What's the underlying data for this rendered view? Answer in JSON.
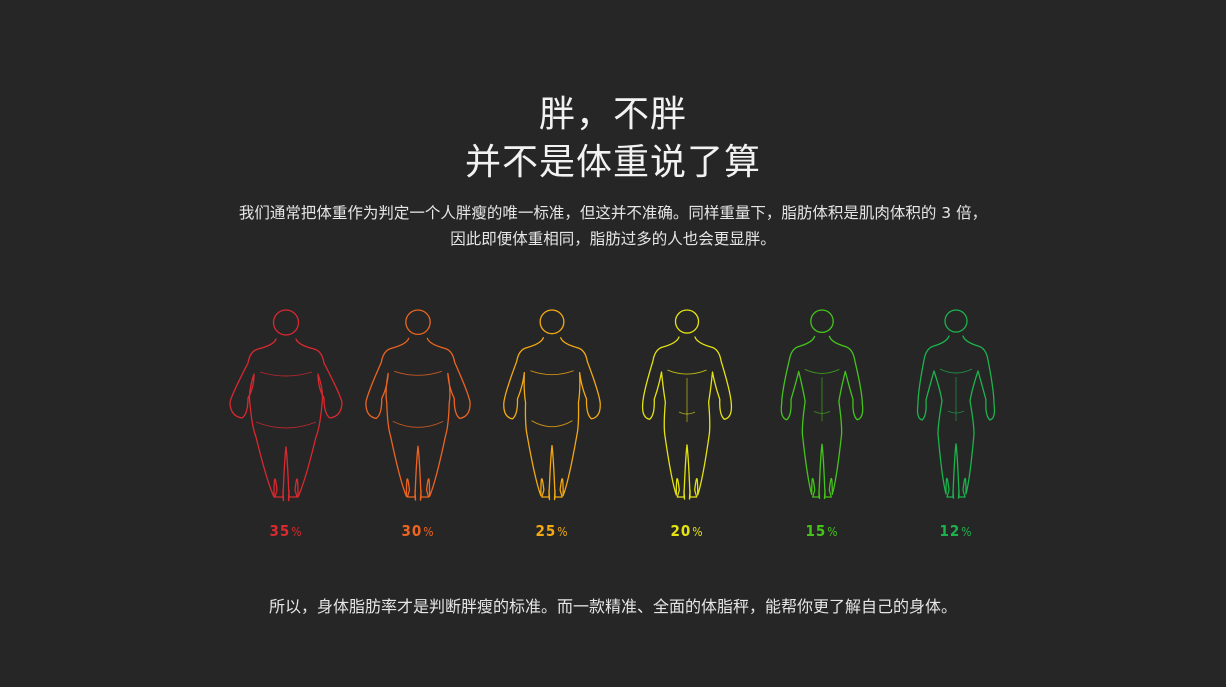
{
  "title_line1": "胖，不胖",
  "title_line2": "并不是体重说了算",
  "description_line1": "我们通常把体重作为判定一个人胖瘦的唯一标准，但这并不准确。同样重量下，脂肪体积是肌肉体积的 3 倍，",
  "description_line2": "因此即便体重相同，脂肪过多的人也会更显胖。",
  "figures": [
    {
      "value": "35",
      "unit": "%",
      "color": "#d9292f",
      "body_fat": 35
    },
    {
      "value": "30",
      "unit": "%",
      "color": "#ec6420",
      "body_fat": 30
    },
    {
      "value": "25",
      "unit": "%",
      "color": "#f3a912",
      "body_fat": 25
    },
    {
      "value": "20",
      "unit": "%",
      "color": "#e5e212",
      "body_fat": 20
    },
    {
      "value": "15",
      "unit": "%",
      "color": "#45c31a",
      "body_fat": 15
    },
    {
      "value": "12",
      "unit": "%",
      "color": "#1bb34b",
      "body_fat": 12
    }
  ],
  "footer": "所以，身体脂肪率才是判断胖瘦的标准。而一款精准、全面的体脂秤，能帮你更了解自己的身体。"
}
